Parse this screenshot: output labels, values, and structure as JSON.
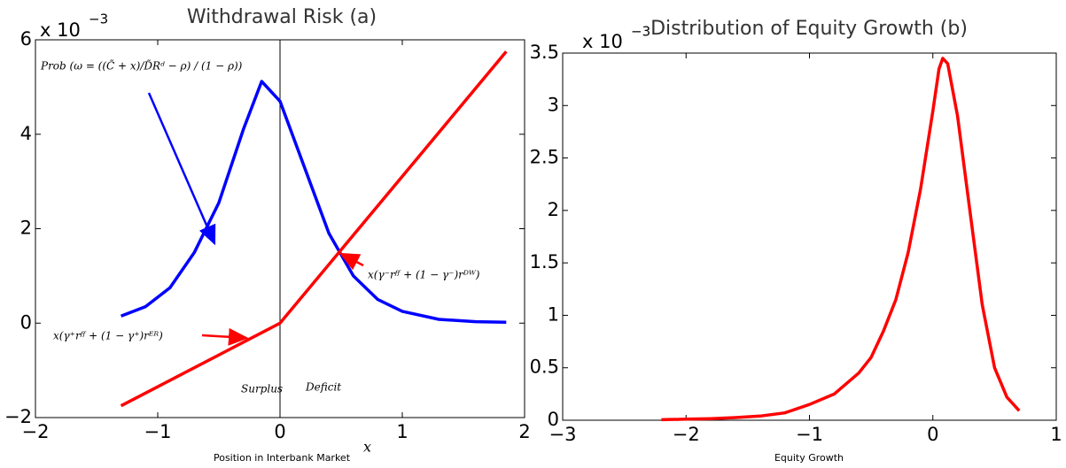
{
  "chart_data": [
    {
      "type": "line",
      "title": "Withdrawal Risk (a)",
      "x_label": "Position in Interbank Market",
      "x_symbol": "x",
      "offset_text": {
        "base": "x 10",
        "exponent": "−3"
      },
      "xlim": [
        -2,
        2
      ],
      "ylim": [
        -2,
        6
      ],
      "xticks": [
        {
          "value": -2,
          "label": "−2"
        },
        {
          "value": -1,
          "label": "−1"
        },
        0,
        1,
        2
      ],
      "yticks": [
        {
          "value": -2,
          "label": "−2"
        },
        0,
        2,
        4,
        6
      ],
      "vline": 0,
      "grid": false,
      "series": [
        {
          "color": "#0000ff",
          "x": [
            -1.3,
            -1.1,
            -0.9,
            -0.7,
            -0.5,
            -0.3,
            -0.15,
            0,
            0.2,
            0.4,
            0.6,
            0.8,
            1.0,
            1.3,
            1.6,
            1.85
          ],
          "values": [
            0.15,
            0.35,
            0.75,
            1.5,
            2.55,
            4.1,
            5.12,
            4.7,
            3.3,
            1.9,
            1.0,
            0.5,
            0.25,
            0.08,
            0.03,
            0.02
          ]
        },
        {
          "color": "#ff0000",
          "x": [
            -1.3,
            0,
            1.85
          ],
          "values": [
            -1.75,
            0,
            5.75
          ]
        }
      ],
      "annotations": [
        {
          "text": "Prob (ω = ((C̃ + x)/D̃Rᵈ − ρ) / (1 − ρ))",
          "color": "#0000ff"
        },
        {
          "text": "x(γ⁺rᶠᶠ + (1 − γ⁺)rᴱᴿ)",
          "color": "#000000"
        },
        {
          "text": "x(γ⁻rᶠᶠ + (1 − γ⁻)rᴰᵂ)",
          "color": "#000000"
        },
        {
          "text": "Surplus",
          "color": "#000000"
        },
        {
          "text": "Deficit",
          "color": "#000000"
        }
      ]
    },
    {
      "type": "line",
      "title": "Distribution of Equity Growth (b)",
      "x_label": "Equity Growth",
      "offset_text": {
        "base": "x 10",
        "exponent": "−3"
      },
      "xlim": [
        -3,
        1
      ],
      "ylim": [
        0,
        3.5
      ],
      "xticks": [
        {
          "value": -3,
          "label": "−3"
        },
        {
          "value": -2,
          "label": "−2"
        },
        {
          "value": -1,
          "label": "−1"
        },
        0,
        1
      ],
      "yticks": [
        0,
        0.5,
        1,
        1.5,
        2,
        2.5,
        3,
        3.5
      ],
      "grid": false,
      "series": [
        {
          "color": "#ff0000",
          "x": [
            -2.2,
            -2,
            -1.8,
            -1.6,
            -1.4,
            -1.2,
            -1.0,
            -0.8,
            -0.6,
            -0.5,
            -0.4,
            -0.3,
            -0.2,
            -0.1,
            0,
            0.05,
            0.08,
            0.12,
            0.2,
            0.3,
            0.4,
            0.5,
            0.6,
            0.7
          ],
          "values": [
            0.005,
            0.01,
            0.015,
            0.025,
            0.04,
            0.07,
            0.15,
            0.25,
            0.45,
            0.6,
            0.85,
            1.15,
            1.6,
            2.2,
            2.95,
            3.35,
            3.45,
            3.4,
            2.9,
            2.0,
            1.1,
            0.5,
            0.22,
            0.09
          ]
        }
      ]
    }
  ]
}
